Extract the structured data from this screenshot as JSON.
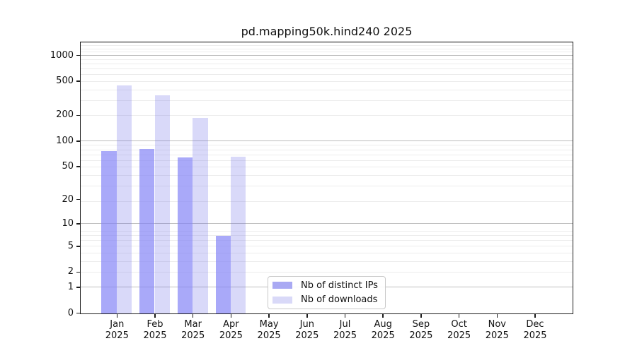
{
  "chart_data": {
    "type": "bar",
    "title": "pd.mapping50k.hind240 2025",
    "categories": [
      {
        "month": "Jan",
        "year": "2025"
      },
      {
        "month": "Feb",
        "year": "2025"
      },
      {
        "month": "Mar",
        "year": "2025"
      },
      {
        "month": "Apr",
        "year": "2025"
      },
      {
        "month": "May",
        "year": "2025"
      },
      {
        "month": "Jun",
        "year": "2025"
      },
      {
        "month": "Jul",
        "year": "2025"
      },
      {
        "month": "Aug",
        "year": "2025"
      },
      {
        "month": "Sep",
        "year": "2025"
      },
      {
        "month": "Oct",
        "year": "2025"
      },
      {
        "month": "Nov",
        "year": "2025"
      },
      {
        "month": "Dec",
        "year": "2025"
      }
    ],
    "series": [
      {
        "name": "Nb of distinct IPs",
        "color": "#a9a9f3",
        "bar_fill": "rgba(132,132,247,0.70)",
        "values": [
          77,
          82,
          65,
          7,
          null,
          null,
          null,
          null,
          null,
          null,
          null,
          null
        ]
      },
      {
        "name": "Nb of downloads",
        "color": "#d9d9f8",
        "bar_fill": "rgba(104,104,232,0.25)",
        "values": [
          455,
          350,
          188,
          66,
          null,
          null,
          null,
          null,
          null,
          null,
          null,
          null
        ]
      }
    ],
    "y_ticks": [
      0,
      1,
      2,
      5,
      10,
      20,
      50,
      100,
      200,
      500,
      1000
    ],
    "scale": "log1p",
    "ylim": [
      0,
      1460
    ],
    "grid": true,
    "grid_major_at": [
      1,
      10,
      100,
      1000
    ],
    "legend_position": "inside-bottom-center",
    "xlabel": "",
    "ylabel": "",
    "colors": {
      "grid_minor": "#ececec",
      "grid_major": "#bdbdbd",
      "spine": "#1c1c1c",
      "background": "#ffffff"
    }
  }
}
